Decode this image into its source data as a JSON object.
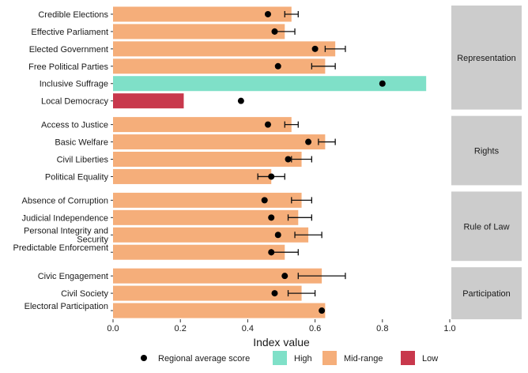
{
  "chart_data": {
    "type": "bar",
    "orientation": "horizontal",
    "xlabel": "Index value",
    "xlim": [
      0,
      1
    ],
    "xticks": [
      "0.0",
      "0.2",
      "0.4",
      "0.6",
      "0.8",
      "1.0"
    ],
    "grid": false,
    "legend_position": "bottom",
    "legend": {
      "point_label": "Regional average score",
      "categories": [
        {
          "name": "High",
          "color": "#7FE0C8"
        },
        {
          "name": "Mid-range",
          "color": "#F5AE7A"
        },
        {
          "name": "Low",
          "color": "#C8384C"
        }
      ]
    },
    "panels": [
      {
        "name": "Representation",
        "rows": [
          {
            "label": "Credible Elections",
            "value": 0.53,
            "category": "Mid-range",
            "regional_avg": 0.46,
            "err": [
              0.51,
              0.55
            ]
          },
          {
            "label": "Effective Parliament",
            "value": 0.51,
            "category": "Mid-range",
            "regional_avg": 0.48,
            "err": [
              0.48,
              0.54
            ]
          },
          {
            "label": "Elected Government",
            "value": 0.66,
            "category": "Mid-range",
            "regional_avg": 0.6,
            "err": [
              0.63,
              0.69
            ]
          },
          {
            "label": "Free Political Parties",
            "value": 0.63,
            "category": "Mid-range",
            "regional_avg": 0.49,
            "err": [
              0.59,
              0.66
            ]
          },
          {
            "label": "Inclusive Suffrage",
            "value": 0.93,
            "category": "High",
            "regional_avg": 0.8,
            "err": null
          },
          {
            "label": "Local Democracy",
            "value": 0.21,
            "category": "Low",
            "regional_avg": 0.38,
            "err": null
          }
        ]
      },
      {
        "name": "Rights",
        "rows": [
          {
            "label": "Access to Justice",
            "value": 0.53,
            "category": "Mid-range",
            "regional_avg": 0.46,
            "err": [
              0.51,
              0.55
            ]
          },
          {
            "label": "Basic Welfare",
            "value": 0.63,
            "category": "Mid-range",
            "regional_avg": 0.58,
            "err": [
              0.61,
              0.66
            ]
          },
          {
            "label": "Civil Liberties",
            "value": 0.56,
            "category": "Mid-range",
            "regional_avg": 0.52,
            "err": [
              0.53,
              0.59
            ]
          },
          {
            "label": "Political Equality",
            "value": 0.47,
            "category": "Mid-range",
            "regional_avg": 0.47,
            "err": [
              0.43,
              0.51
            ]
          }
        ]
      },
      {
        "name": "Rule of Law",
        "rows": [
          {
            "label": "Absence of Corruption",
            "value": 0.56,
            "category": "Mid-range",
            "regional_avg": 0.45,
            "err": [
              0.53,
              0.59
            ]
          },
          {
            "label": "Judicial Independence",
            "value": 0.55,
            "category": "Mid-range",
            "regional_avg": 0.47,
            "err": [
              0.52,
              0.59
            ]
          },
          {
            "label": "Personal Integrity and Security",
            "value": 0.58,
            "category": "Mid-range",
            "regional_avg": 0.49,
            "err": [
              0.54,
              0.62
            ]
          },
          {
            "label": "Predictable Enforcement",
            "value": 0.51,
            "category": "Mid-range",
            "regional_avg": 0.47,
            "err": [
              0.47,
              0.55
            ]
          }
        ]
      },
      {
        "name": "Participation",
        "rows": [
          {
            "label": "Civic Engagement",
            "value": 0.62,
            "category": "Mid-range",
            "regional_avg": 0.51,
            "err": [
              0.55,
              0.69
            ]
          },
          {
            "label": "Civil Society",
            "value": 0.56,
            "category": "Mid-range",
            "regional_avg": 0.48,
            "err": [
              0.52,
              0.6
            ]
          },
          {
            "label": "Electoral Participation",
            "value": 0.63,
            "category": "Mid-range",
            "regional_avg": 0.62,
            "err": null
          }
        ]
      }
    ]
  }
}
